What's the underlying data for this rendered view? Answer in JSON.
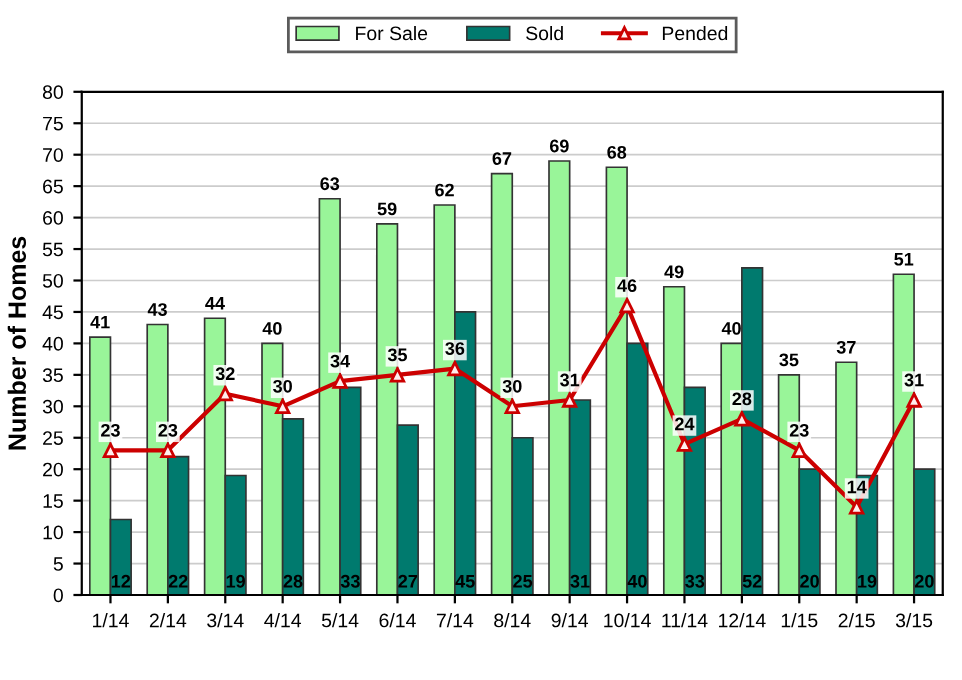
{
  "chart_data": {
    "type": "bar",
    "ylabel": "Number of Homes",
    "categories": [
      "1/14",
      "2/14",
      "3/14",
      "4/14",
      "5/14",
      "6/14",
      "7/14",
      "8/14",
      "9/14",
      "10/14",
      "11/14",
      "12/14",
      "1/15",
      "2/15",
      "3/15"
    ],
    "series": [
      {
        "name": "For Sale",
        "color": "#99f599",
        "values": [
          41,
          43,
          44,
          40,
          63,
          59,
          62,
          67,
          69,
          68,
          49,
          40,
          35,
          37,
          51
        ]
      },
      {
        "name": "Sold",
        "color": "#007a6e",
        "values": [
          12,
          22,
          19,
          28,
          33,
          27,
          45,
          25,
          31,
          40,
          33,
          52,
          20,
          19,
          20
        ]
      },
      {
        "name": "Pended",
        "type": "line",
        "color": "#cc0000",
        "marker": "triangle",
        "values": [
          23,
          23,
          32,
          30,
          34,
          35,
          36,
          30,
          31,
          46,
          24,
          28,
          23,
          14,
          31
        ]
      }
    ],
    "ylim": [
      0,
      80
    ],
    "yticks": [
      0,
      5,
      10,
      15,
      20,
      25,
      30,
      35,
      40,
      45,
      50,
      55,
      60,
      65,
      70,
      75,
      80
    ],
    "grid": "y",
    "legend": "top",
    "data_labels": true
  }
}
